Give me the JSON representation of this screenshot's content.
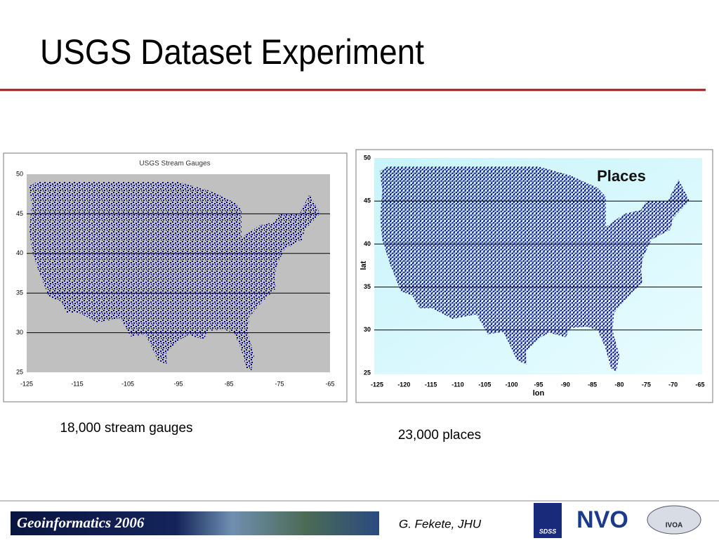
{
  "header": {
    "title": "USGS Dataset Experiment"
  },
  "figures": [
    {
      "title": "USGS Stream Gauges",
      "yticks": [
        "50",
        "45",
        "40",
        "35",
        "30",
        "25"
      ],
      "xticks": [
        "-125",
        "-115",
        "-105",
        "-95",
        "-85",
        "-75",
        "-65"
      ],
      "caption": "18,000 stream gauges"
    },
    {
      "title": "Places",
      "y_label": "lat",
      "x_label": "lon",
      "yticks": [
        "50",
        "45",
        "40",
        "35",
        "30",
        "25"
      ],
      "xticks": [
        "-125",
        "-120",
        "-115",
        "-110",
        "-105",
        "-100",
        "-95",
        "-90",
        "-85",
        "-80",
        "-75",
        "-70",
        "-65"
      ],
      "caption": "23,000 places"
    }
  ],
  "footer": {
    "event": "Geoinformatics 2006",
    "author": "G. Fekete, JHU",
    "logos": [
      "SDSS",
      "NVO",
      "IVOA"
    ]
  }
}
